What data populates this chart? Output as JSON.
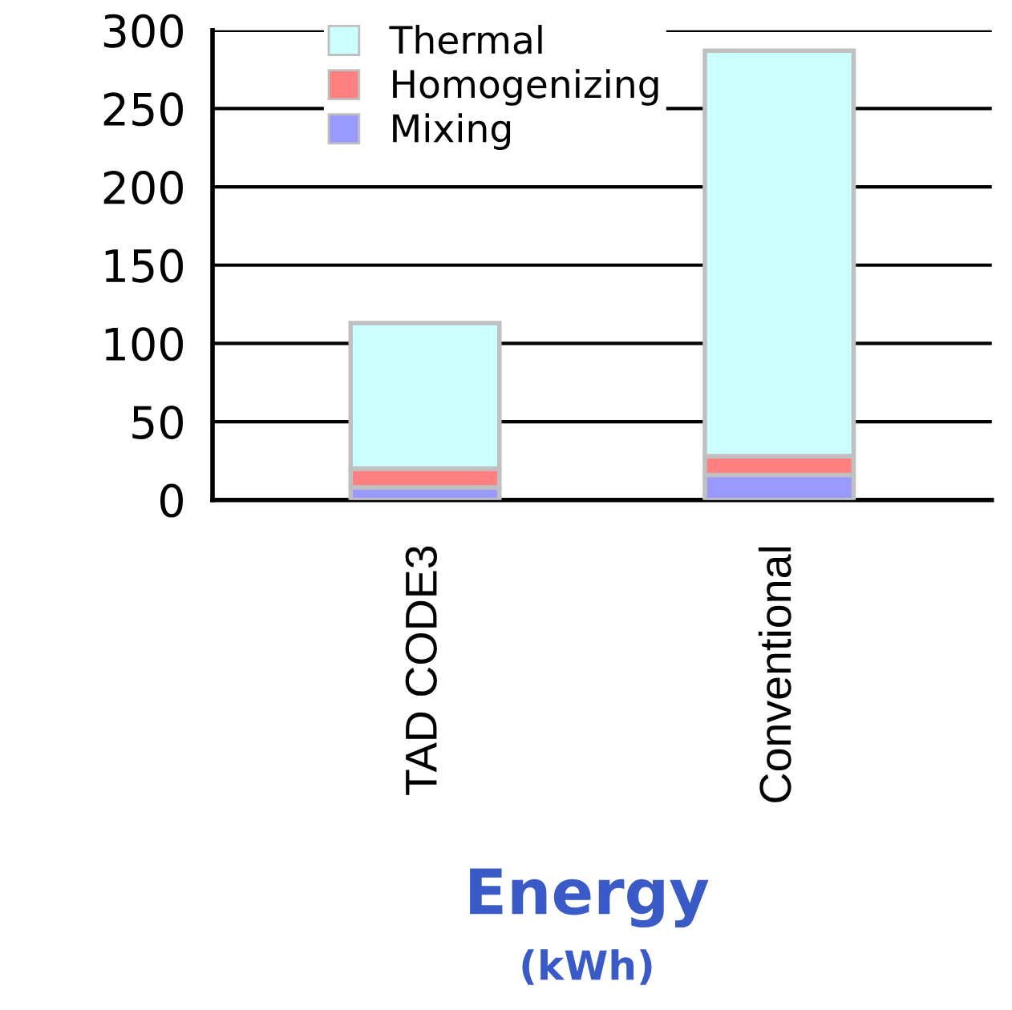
{
  "chart_data": {
    "type": "bar",
    "stacked": true,
    "categories": [
      "TAD CODE3",
      "Conventional"
    ],
    "series": [
      {
        "name": "Mixing",
        "color": "#9999ff",
        "values": [
          8,
          16
        ]
      },
      {
        "name": "Homogenizing",
        "color": "#ff8080",
        "values": [
          12,
          12
        ]
      },
      {
        "name": "Thermal",
        "color": "#ccffff",
        "values": [
          93,
          259
        ]
      }
    ],
    "ylim": [
      0,
      300
    ],
    "yticks": [
      0,
      50,
      100,
      150,
      200,
      250,
      300
    ],
    "grid": "y",
    "legend": "top left",
    "xlabel": "Energy",
    "annotations": [
      "(kWh)"
    ]
  }
}
